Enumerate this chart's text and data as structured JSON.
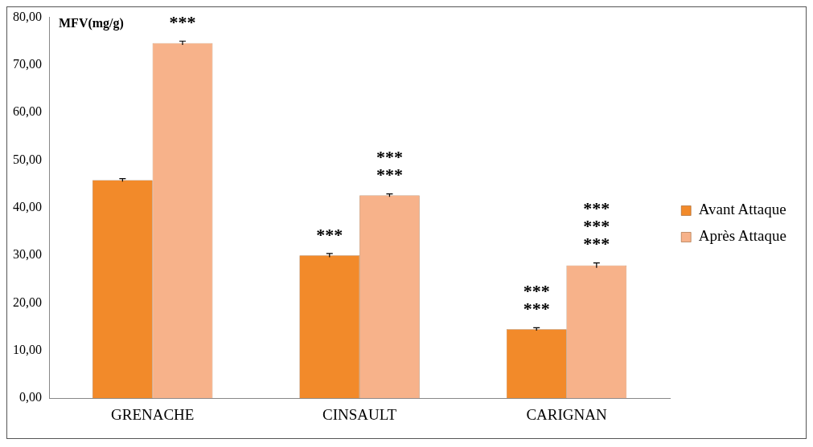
{
  "chart_data": {
    "type": "bar",
    "ylabel": "MFV(mg/g)",
    "categories": [
      "GRENACHE",
      "CINSAULT",
      "CARIGNAN"
    ],
    "series": [
      {
        "name": "Avant Attaque",
        "color": "#f28a2a",
        "values": [
          45.8,
          30.0,
          14.5
        ],
        "errors": [
          0.3,
          0.4,
          0.3
        ]
      },
      {
        "name": "Après Attaque",
        "color": "#f7b28a",
        "values": [
          74.6,
          42.6,
          27.9
        ],
        "errors": [
          0.4,
          0.3,
          0.5
        ]
      }
    ],
    "ylim": [
      0,
      80
    ],
    "yticks": [
      {
        "value": 0,
        "label": "0,00"
      },
      {
        "value": 10,
        "label": "10,00"
      },
      {
        "value": 20,
        "label": "20,00"
      },
      {
        "value": 30,
        "label": "30,00"
      },
      {
        "value": 40,
        "label": "40,00"
      },
      {
        "value": 50,
        "label": "50,00"
      },
      {
        "value": 60,
        "label": "60,00"
      },
      {
        "value": 70,
        "label": "70,00"
      },
      {
        "value": 80,
        "label": "80,00"
      }
    ],
    "annotations": [
      {
        "text": "***",
        "x": "GRENACHE",
        "y": 74.6
      },
      {
        "text": "***",
        "x": "CINSAULT",
        "y": 30.0
      },
      {
        "text": "***",
        "x": "CINSAULT",
        "y": 42.6
      },
      {
        "text": "***",
        "x": "CINSAULT",
        "y": 42.6
      },
      {
        "text": "***",
        "x": "CARIGNAN",
        "y": 14.5
      },
      {
        "text": "***",
        "x": "CARIGNAN",
        "y": 14.5
      },
      {
        "text": "***",
        "x": "CARIGNAN",
        "y": 27.9
      },
      {
        "text": "***",
        "x": "CARIGNAN",
        "y": 27.9
      },
      {
        "text": "***",
        "x": "CARIGNAN",
        "y": 27.9
      }
    ],
    "grid": false,
    "legend": "right"
  }
}
